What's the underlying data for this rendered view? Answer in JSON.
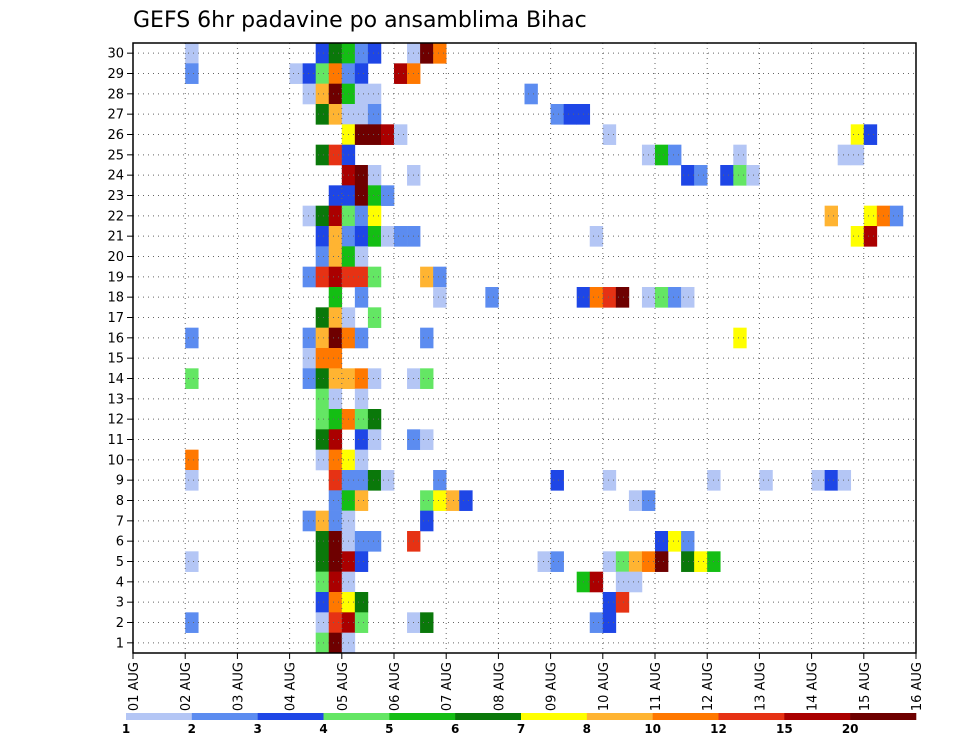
{
  "chart_data": {
    "type": "heatmap",
    "title": "GEFS 6hr padavine po ansamblima Bihac",
    "xlabel": "",
    "ylabel": "",
    "x_ticks": [
      "01 AUG",
      "02 AUG",
      "03 AUG",
      "04 AUG",
      "05 AUG",
      "06 AUG",
      "07 AUG",
      "08 AUG",
      "09 AUG",
      "10 AUG",
      "11 AUG",
      "12 AUG",
      "13 AUG",
      "14 AUG",
      "15 AUG",
      "16 AUG"
    ],
    "y_ticks": [
      "1",
      "2",
      "3",
      "4",
      "5",
      "6",
      "7",
      "8",
      "9",
      "10",
      "11",
      "12",
      "13",
      "14",
      "15",
      "16",
      "17",
      "18",
      "19",
      "20",
      "21",
      "22",
      "23",
      "24",
      "25",
      "26",
      "27",
      "28",
      "29",
      "30"
    ],
    "xlim": [
      0,
      60
    ],
    "ylim": [
      0.5,
      30.5
    ],
    "steps_per_day": 4,
    "grid": true,
    "colorbar": {
      "levels": [
        "1",
        "2",
        "3",
        "4",
        "5",
        "6",
        "7",
        "8",
        "10",
        "12",
        "15",
        "20"
      ],
      "colors": [
        "#b4c6f5",
        "#5c8cf0",
        "#1e46e6",
        "#64e664",
        "#14be14",
        "#0a780a",
        "#ffff00",
        "#ffb432",
        "#ff7800",
        "#e63214",
        "#aa0000",
        "#6e0000"
      ]
    },
    "cells": [
      [
        30,
        4,
        1
      ],
      [
        30,
        14,
        3
      ],
      [
        30,
        15,
        6
      ],
      [
        30,
        16,
        5
      ],
      [
        30,
        17,
        2
      ],
      [
        30,
        18,
        3
      ],
      [
        30,
        21,
        1
      ],
      [
        30,
        22,
        12
      ],
      [
        30,
        23,
        9
      ],
      [
        29,
        4,
        2
      ],
      [
        29,
        12,
        1
      ],
      [
        29,
        13,
        3
      ],
      [
        29,
        14,
        4
      ],
      [
        29,
        15,
        9
      ],
      [
        29,
        16,
        2
      ],
      [
        29,
        17,
        3
      ],
      [
        29,
        20,
        11
      ],
      [
        29,
        21,
        9
      ],
      [
        28,
        13,
        1
      ],
      [
        28,
        14,
        8
      ],
      [
        28,
        15,
        12
      ],
      [
        28,
        16,
        5
      ],
      [
        28,
        17,
        1
      ],
      [
        28,
        18,
        1
      ],
      [
        28,
        30,
        2
      ],
      [
        27,
        14,
        6
      ],
      [
        27,
        15,
        8
      ],
      [
        27,
        16,
        1
      ],
      [
        27,
        17,
        1
      ],
      [
        27,
        18,
        2
      ],
      [
        27,
        32,
        2
      ],
      [
        27,
        33,
        3
      ],
      [
        27,
        34,
        3
      ],
      [
        26,
        16,
        7
      ],
      [
        26,
        17,
        12
      ],
      [
        26,
        18,
        12
      ],
      [
        26,
        19,
        11
      ],
      [
        26,
        20,
        1
      ],
      [
        26,
        36,
        1
      ],
      [
        26,
        55,
        7
      ],
      [
        26,
        56,
        3
      ],
      [
        25,
        14,
        6
      ],
      [
        25,
        15,
        10
      ],
      [
        25,
        16,
        3
      ],
      [
        25,
        39,
        1
      ],
      [
        25,
        40,
        5
      ],
      [
        25,
        41,
        2
      ],
      [
        25,
        46,
        1
      ],
      [
        25,
        54,
        1
      ],
      [
        25,
        55,
        1
      ],
      [
        24,
        16,
        11
      ],
      [
        24,
        17,
        12
      ],
      [
        24,
        18,
        1
      ],
      [
        24,
        21,
        1
      ],
      [
        24,
        42,
        3
      ],
      [
        24,
        43,
        2
      ],
      [
        24,
        45,
        3
      ],
      [
        24,
        46,
        4
      ],
      [
        24,
        47,
        1
      ],
      [
        23,
        15,
        3
      ],
      [
        23,
        16,
        3
      ],
      [
        23,
        17,
        12
      ],
      [
        23,
        18,
        5
      ],
      [
        23,
        19,
        2
      ],
      [
        22,
        13,
        1
      ],
      [
        22,
        14,
        6
      ],
      [
        22,
        15,
        11
      ],
      [
        22,
        16,
        4
      ],
      [
        22,
        17,
        2
      ],
      [
        22,
        18,
        7
      ],
      [
        22,
        53,
        8
      ],
      [
        22,
        56,
        7
      ],
      [
        22,
        57,
        9
      ],
      [
        22,
        58,
        2
      ],
      [
        21,
        14,
        3
      ],
      [
        21,
        15,
        8
      ],
      [
        21,
        16,
        2
      ],
      [
        21,
        17,
        3
      ],
      [
        21,
        18,
        5
      ],
      [
        21,
        19,
        1
      ],
      [
        21,
        20,
        2
      ],
      [
        21,
        21,
        2
      ],
      [
        21,
        35,
        1
      ],
      [
        21,
        55,
        7
      ],
      [
        21,
        56,
        11
      ],
      [
        20,
        14,
        2
      ],
      [
        20,
        15,
        8
      ],
      [
        20,
        16,
        5
      ],
      [
        20,
        17,
        1
      ],
      [
        19,
        13,
        2
      ],
      [
        19,
        14,
        10
      ],
      [
        19,
        15,
        11
      ],
      [
        19,
        16,
        10
      ],
      [
        19,
        17,
        10
      ],
      [
        19,
        18,
        4
      ],
      [
        19,
        22,
        8
      ],
      [
        19,
        23,
        2
      ],
      [
        18,
        15,
        5
      ],
      [
        18,
        17,
        2
      ],
      [
        18,
        23,
        1
      ],
      [
        18,
        27,
        2
      ],
      [
        18,
        34,
        3
      ],
      [
        18,
        35,
        9
      ],
      [
        18,
        36,
        10
      ],
      [
        18,
        37,
        12
      ],
      [
        18,
        39,
        1
      ],
      [
        18,
        40,
        4
      ],
      [
        18,
        41,
        2
      ],
      [
        18,
        42,
        1
      ],
      [
        17,
        14,
        6
      ],
      [
        17,
        15,
        8
      ],
      [
        17,
        16,
        1
      ],
      [
        17,
        18,
        4
      ],
      [
        16,
        4,
        2
      ],
      [
        16,
        13,
        2
      ],
      [
        16,
        14,
        8
      ],
      [
        16,
        15,
        12
      ],
      [
        16,
        16,
        9
      ],
      [
        16,
        17,
        2
      ],
      [
        16,
        22,
        2
      ],
      [
        16,
        46,
        7
      ],
      [
        15,
        13,
        1
      ],
      [
        15,
        14,
        9
      ],
      [
        15,
        15,
        9
      ],
      [
        14,
        4,
        4
      ],
      [
        14,
        13,
        2
      ],
      [
        14,
        14,
        6
      ],
      [
        14,
        15,
        8
      ],
      [
        14,
        16,
        8
      ],
      [
        14,
        17,
        9
      ],
      [
        14,
        18,
        1
      ],
      [
        14,
        21,
        1
      ],
      [
        14,
        22,
        4
      ],
      [
        13,
        14,
        4
      ],
      [
        13,
        15,
        1
      ],
      [
        13,
        17,
        1
      ],
      [
        12,
        14,
        4
      ],
      [
        12,
        15,
        5
      ],
      [
        12,
        16,
        9
      ],
      [
        12,
        17,
        4
      ],
      [
        12,
        18,
        6
      ],
      [
        11,
        14,
        6
      ],
      [
        11,
        15,
        11
      ],
      [
        11,
        17,
        3
      ],
      [
        11,
        18,
        1
      ],
      [
        11,
        21,
        2
      ],
      [
        11,
        22,
        1
      ],
      [
        10,
        4,
        9
      ],
      [
        10,
        14,
        1
      ],
      [
        10,
        15,
        9
      ],
      [
        10,
        16,
        7
      ],
      [
        10,
        17,
        1
      ],
      [
        9,
        4,
        1
      ],
      [
        9,
        15,
        10
      ],
      [
        9,
        16,
        2
      ],
      [
        9,
        17,
        2
      ],
      [
        9,
        18,
        6
      ],
      [
        9,
        19,
        1
      ],
      [
        9,
        23,
        2
      ],
      [
        9,
        32,
        3
      ],
      [
        9,
        36,
        1
      ],
      [
        9,
        44,
        1
      ],
      [
        9,
        48,
        1
      ],
      [
        9,
        52,
        1
      ],
      [
        9,
        53,
        3
      ],
      [
        9,
        54,
        1
      ],
      [
        8,
        15,
        2
      ],
      [
        8,
        16,
        5
      ],
      [
        8,
        17,
        8
      ],
      [
        8,
        22,
        4
      ],
      [
        8,
        23,
        7
      ],
      [
        8,
        24,
        8
      ],
      [
        8,
        25,
        3
      ],
      [
        8,
        38,
        1
      ],
      [
        8,
        39,
        2
      ],
      [
        7,
        13,
        2
      ],
      [
        7,
        14,
        8
      ],
      [
        7,
        15,
        2
      ],
      [
        7,
        16,
        1
      ],
      [
        7,
        22,
        3
      ],
      [
        6,
        14,
        6
      ],
      [
        6,
        15,
        12
      ],
      [
        6,
        16,
        1
      ],
      [
        6,
        17,
        2
      ],
      [
        6,
        18,
        2
      ],
      [
        6,
        21,
        10
      ],
      [
        6,
        40,
        3
      ],
      [
        6,
        41,
        7
      ],
      [
        6,
        42,
        2
      ],
      [
        5,
        4,
        1
      ],
      [
        5,
        14,
        6
      ],
      [
        5,
        15,
        12
      ],
      [
        5,
        16,
        11
      ],
      [
        5,
        17,
        3
      ],
      [
        5,
        31,
        1
      ],
      [
        5,
        32,
        2
      ],
      [
        5,
        36,
        1
      ],
      [
        5,
        37,
        4
      ],
      [
        5,
        38,
        8
      ],
      [
        5,
        39,
        9
      ],
      [
        5,
        40,
        12
      ],
      [
        5,
        42,
        6
      ],
      [
        5,
        43,
        7
      ],
      [
        5,
        44,
        5
      ],
      [
        4,
        14,
        4
      ],
      [
        4,
        15,
        11
      ],
      [
        4,
        16,
        1
      ],
      [
        4,
        34,
        5
      ],
      [
        4,
        35,
        11
      ],
      [
        4,
        37,
        1
      ],
      [
        4,
        38,
        1
      ],
      [
        3,
        14,
        3
      ],
      [
        3,
        15,
        9
      ],
      [
        3,
        16,
        7
      ],
      [
        3,
        17,
        6
      ],
      [
        3,
        36,
        3
      ],
      [
        3,
        37,
        10
      ],
      [
        2,
        4,
        2
      ],
      [
        2,
        14,
        1
      ],
      [
        2,
        15,
        10
      ],
      [
        2,
        16,
        11
      ],
      [
        2,
        17,
        4
      ],
      [
        2,
        21,
        1
      ],
      [
        2,
        22,
        6
      ],
      [
        2,
        35,
        2
      ],
      [
        2,
        36,
        3
      ],
      [
        1,
        14,
        4
      ],
      [
        1,
        15,
        12
      ],
      [
        1,
        16,
        1
      ]
    ]
  }
}
